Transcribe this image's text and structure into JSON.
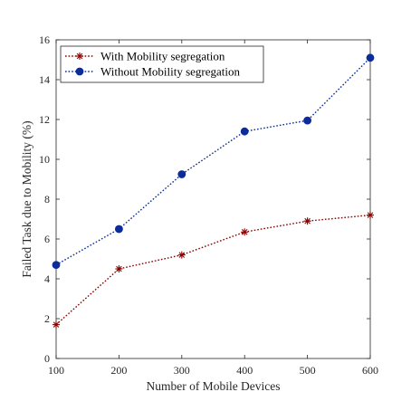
{
  "chart_data": {
    "type": "line",
    "title": "",
    "xlabel": "Number of Mobile Devices",
    "ylabel": "Failed Task due to Mobility (%)",
    "x": [
      100,
      200,
      300,
      400,
      500,
      600
    ],
    "xlim": [
      100,
      600
    ],
    "ylim": [
      0,
      16
    ],
    "xticks": [
      100,
      200,
      300,
      400,
      500,
      600
    ],
    "yticks": [
      0,
      2,
      4,
      6,
      8,
      10,
      12,
      14,
      16
    ],
    "grid": false,
    "legend_position": "top-left",
    "series": [
      {
        "name": "With Mobility segregation",
        "values": [
          1.7,
          4.5,
          5.2,
          6.35,
          6.9,
          7.2
        ],
        "color": "#8b0000",
        "marker": "asterisk",
        "linestyle": "dotted"
      },
      {
        "name": "Without Mobility segregation",
        "values": [
          4.7,
          6.5,
          9.25,
          11.4,
          11.95,
          15.1
        ],
        "color": "#0b2c9a",
        "marker": "circle",
        "linestyle": "dotted"
      }
    ]
  }
}
